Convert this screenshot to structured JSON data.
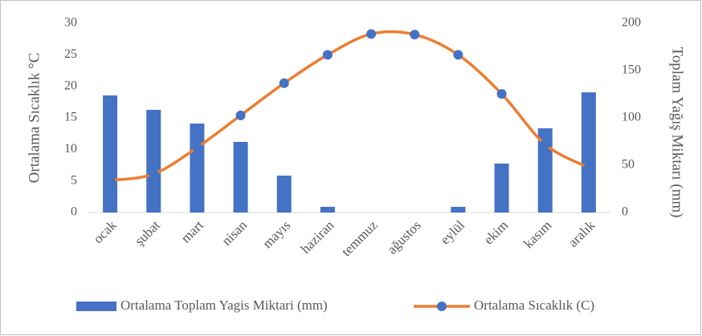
{
  "chart_data": {
    "type": "bar-line",
    "y_label": "Ortalama Sıcaklık °C",
    "y2_label": "Toplam Yağış Miktarı (mm)",
    "categories": [
      "ocak",
      "şubat",
      "mart",
      "nisan",
      "mayıs",
      "haziran",
      "temmuz",
      "ağustos",
      "eylül",
      "ekim",
      "kasım",
      "aralık"
    ],
    "series": [
      {
        "name": "Ortalama Toplam Yagis Miktari (mm)",
        "type": "bar",
        "axis": "y2",
        "color": "#4472c4",
        "values": [
          123.7,
          108.5,
          94,
          74.6,
          39,
          6,
          0,
          0,
          6,
          51.7,
          89,
          127
        ]
      },
      {
        "name": "Ortalama Sıcaklık (C)",
        "type": "line",
        "axis": "y",
        "color": "#ed7d31",
        "marker_color": "#4472c4",
        "values": [
          5.1,
          6.1,
          10.3,
          15.4,
          20.5,
          25,
          28.3,
          28.2,
          25,
          18.8,
          10.8,
          7.1
        ]
      }
    ],
    "ylim": [
      0,
      30
    ],
    "yticks": [
      0,
      5,
      10,
      15,
      20,
      25,
      30
    ],
    "y2lim": [
      0,
      200
    ],
    "y2ticks": [
      0,
      50,
      100,
      150,
      200
    ],
    "grid": false,
    "legend": "bottom"
  }
}
